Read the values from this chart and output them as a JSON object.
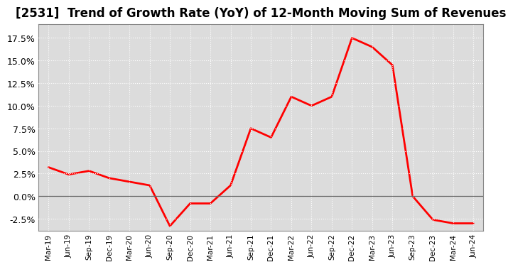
{
  "title": "[2531]  Trend of Growth Rate (YoY) of 12-Month Moving Sum of Revenues",
  "title_fontsize": 12,
  "line_color": "#FF0000",
  "line_width": 2.0,
  "background_color": "#FFFFFF",
  "plot_bg_color": "#DCDCDC",
  "grid_color": "#FFFFFF",
  "grid_color2": "#AAAAAA",
  "ylim": [
    -0.038,
    0.19
  ],
  "yticks": [
    -0.025,
    0.0,
    0.025,
    0.05,
    0.075,
    0.1,
    0.125,
    0.15,
    0.175
  ],
  "values": [
    0.032,
    0.024,
    0.028,
    0.02,
    0.016,
    0.012,
    -0.033,
    -0.008,
    -0.008,
    0.012,
    0.075,
    0.065,
    0.11,
    0.1,
    0.11,
    0.175,
    0.165,
    0.145,
    0.0,
    -0.026,
    -0.03,
    -0.03
  ],
  "xtick_labels": [
    "Mar-19",
    "Jun-19",
    "Sep-19",
    "Dec-19",
    "Mar-20",
    "Jun-20",
    "Sep-20",
    "Dec-20",
    "Mar-21",
    "Jun-21",
    "Sep-21",
    "Dec-21",
    "Mar-22",
    "Jun-22",
    "Sep-22",
    "Dec-22",
    "Mar-23",
    "Jun-23",
    "Sep-23",
    "Dec-23",
    "Mar-24",
    "Jun-24"
  ]
}
